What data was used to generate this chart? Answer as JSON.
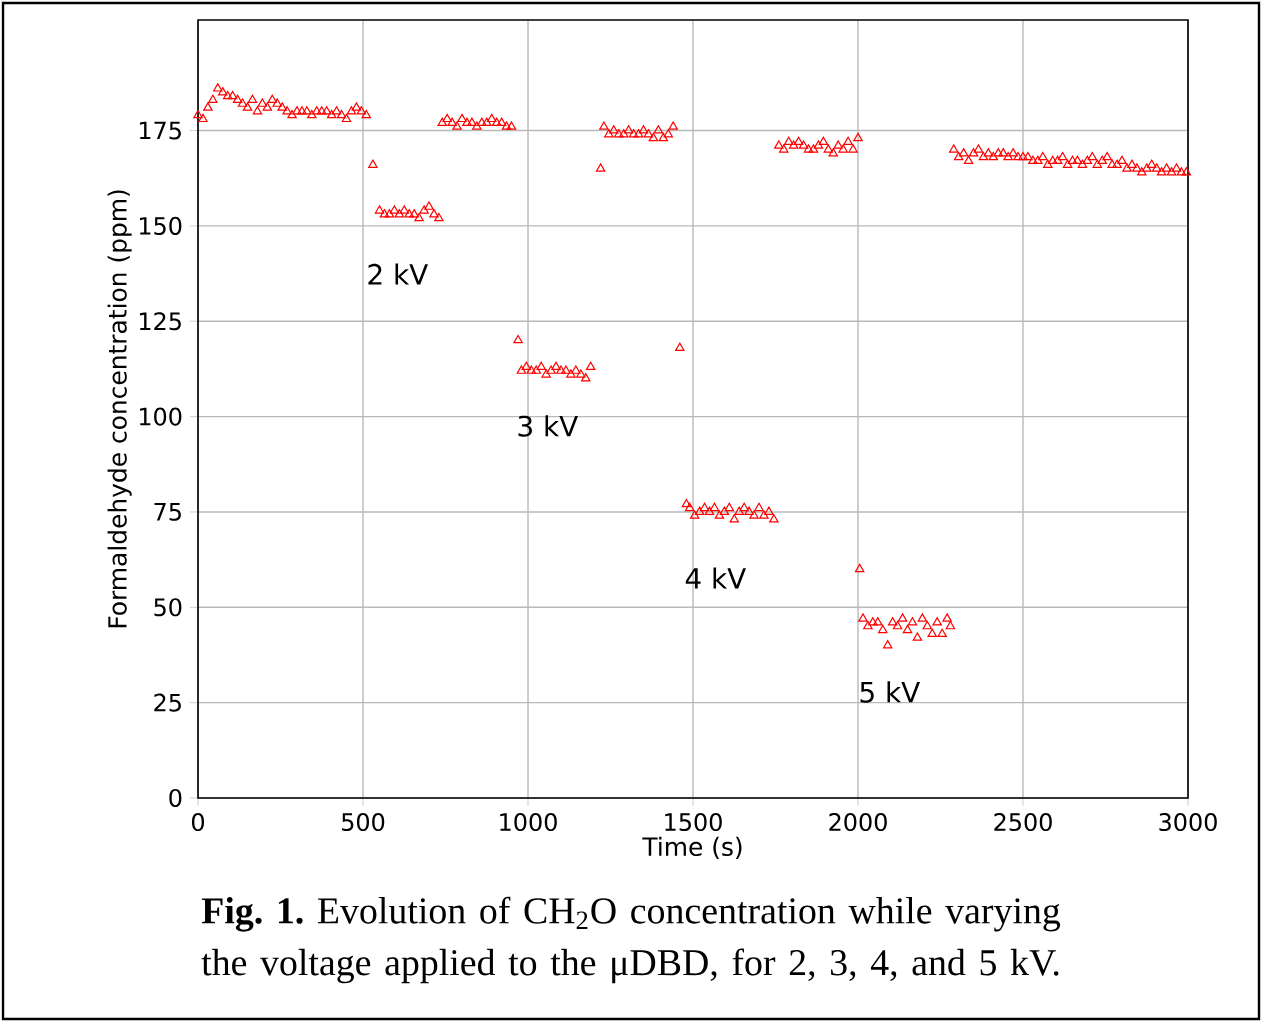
{
  "chart_data": {
    "type": "scatter",
    "xlabel": "Time (s)",
    "ylabel": "Formaldehyde concentration (ppm)",
    "xlim": [
      0,
      3000
    ],
    "ylim": [
      0,
      204
    ],
    "xticks": [
      0,
      500,
      1000,
      1500,
      2000,
      2500,
      3000
    ],
    "yticks": [
      0,
      25,
      50,
      75,
      100,
      125,
      150,
      175
    ],
    "grid": true,
    "marker": "triangle",
    "series": [
      {
        "color": "#ff0000",
        "x": [
          0,
          15,
          30,
          45,
          60,
          75,
          90,
          105,
          120,
          135,
          150,
          165,
          180,
          195,
          210,
          225,
          240,
          255,
          270,
          285,
          300,
          315,
          330,
          345,
          360,
          375,
          390,
          405,
          420,
          435,
          450,
          465,
          480,
          495,
          510,
          530,
          550,
          565,
          580,
          595,
          610,
          625,
          640,
          655,
          670,
          685,
          700,
          715,
          730,
          740,
          755,
          770,
          785,
          800,
          815,
          830,
          845,
          860,
          875,
          890,
          905,
          920,
          935,
          950,
          970,
          980,
          995,
          1010,
          1025,
          1040,
          1055,
          1070,
          1085,
          1100,
          1115,
          1130,
          1145,
          1160,
          1175,
          1190,
          1220,
          1230,
          1245,
          1260,
          1275,
          1290,
          1305,
          1320,
          1335,
          1350,
          1365,
          1380,
          1395,
          1410,
          1425,
          1440,
          1460,
          1480,
          1490,
          1505,
          1520,
          1535,
          1550,
          1565,
          1580,
          1595,
          1610,
          1625,
          1640,
          1655,
          1670,
          1685,
          1700,
          1715,
          1730,
          1745,
          1760,
          1775,
          1790,
          1805,
          1820,
          1835,
          1850,
          1865,
          1880,
          1895,
          1910,
          1925,
          1940,
          1955,
          1970,
          1985,
          2000,
          2005,
          2015,
          2030,
          2045,
          2060,
          2075,
          2090,
          2105,
          2120,
          2135,
          2150,
          2165,
          2180,
          2195,
          2210,
          2225,
          2240,
          2255,
          2270,
          2280,
          2290,
          2305,
          2320,
          2335,
          2350,
          2365,
          2380,
          2395,
          2410,
          2425,
          2440,
          2455,
          2470,
          2485,
          2500,
          2515,
          2530,
          2545,
          2560,
          2575,
          2590,
          2605,
          2620,
          2635,
          2650,
          2665,
          2680,
          2695,
          2710,
          2725,
          2740,
          2755,
          2770,
          2785,
          2800,
          2815,
          2830,
          2845,
          2860,
          2875,
          2890,
          2905,
          2920,
          2935,
          2950,
          2965,
          2980,
          2995
        ],
        "values": [
          179,
          178,
          181,
          183,
          186,
          185,
          184,
          184,
          183,
          182,
          181,
          183,
          180,
          182,
          181,
          183,
          182,
          181,
          180,
          179,
          180,
          180,
          180,
          179,
          180,
          180,
          180,
          179,
          180,
          179,
          178,
          180,
          181,
          180,
          179,
          166,
          154,
          153,
          153,
          154,
          153,
          154,
          153,
          153,
          152,
          154,
          155,
          153,
          152,
          177,
          178,
          177,
          176,
          178,
          177,
          177,
          176,
          177,
          177,
          178,
          177,
          177,
          176,
          176,
          120,
          112,
          113,
          112,
          112,
          113,
          111,
          112,
          113,
          112,
          112,
          111,
          112,
          111,
          110,
          113,
          165,
          176,
          174,
          175,
          174,
          174,
          175,
          174,
          174,
          175,
          174,
          173,
          175,
          173,
          174,
          176,
          118,
          77,
          76,
          74,
          75,
          76,
          75,
          76,
          74,
          75,
          76,
          73,
          75,
          76,
          75,
          74,
          76,
          74,
          75,
          73,
          171,
          170,
          172,
          171,
          172,
          171,
          170,
          170,
          171,
          172,
          170,
          169,
          171,
          170,
          172,
          170,
          173,
          60,
          47,
          45,
          46,
          46,
          44,
          40,
          46,
          45,
          47,
          44,
          46,
          42,
          47,
          45,
          43,
          46,
          43,
          47,
          45,
          170,
          168,
          169,
          167,
          169,
          170,
          168,
          169,
          168,
          169,
          169,
          168,
          169,
          168,
          168,
          168,
          167,
          167,
          168,
          166,
          167,
          167,
          168,
          166,
          167,
          167,
          166,
          167,
          168,
          166,
          167,
          168,
          166,
          166,
          167,
          165,
          166,
          165,
          164,
          165,
          166,
          165,
          164,
          165,
          164,
          165,
          164,
          164
        ]
      }
    ],
    "annotations": [
      "2 kV",
      "3 kV",
      "4 kV",
      "5 kV",
      "**Fig. 1.** Evolution of CH$_{2}$O concentration while varying the voltage applied to the μDBD, for 2, 3, 4, and 5 kV."
    ]
  }
}
